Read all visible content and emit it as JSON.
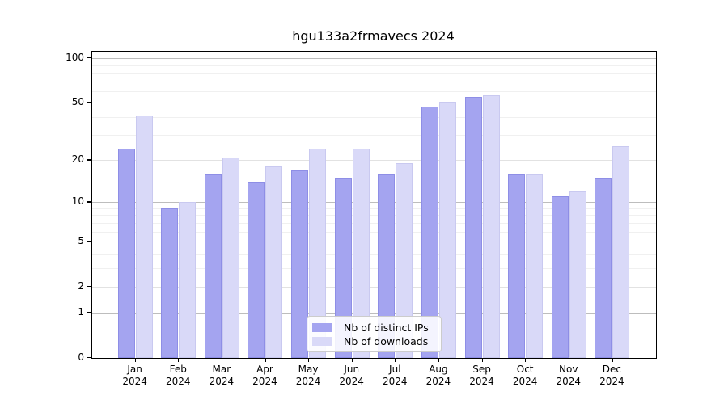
{
  "figure": {
    "title": "hgu133a2frmavecs 2024"
  },
  "chart_data": {
    "type": "bar",
    "title": "hgu133a2frmavecs 2024",
    "categories": [
      {
        "month": "Jan",
        "year": "2024"
      },
      {
        "month": "Feb",
        "year": "2024"
      },
      {
        "month": "Mar",
        "year": "2024"
      },
      {
        "month": "Apr",
        "year": "2024"
      },
      {
        "month": "May",
        "year": "2024"
      },
      {
        "month": "Jun",
        "year": "2024"
      },
      {
        "month": "Jul",
        "year": "2024"
      },
      {
        "month": "Aug",
        "year": "2024"
      },
      {
        "month": "Sep",
        "year": "2024"
      },
      {
        "month": "Oct",
        "year": "2024"
      },
      {
        "month": "Nov",
        "year": "2024"
      },
      {
        "month": "Dec",
        "year": "2024"
      }
    ],
    "series": [
      {
        "key": "distinct-ips",
        "name": "Nb of distinct IPs",
        "color": "#a4a4f0",
        "edge_color": "#8e8ee6",
        "values": [
          24,
          9,
          16,
          14,
          17,
          15,
          16,
          47,
          55,
          16,
          11,
          15
        ]
      },
      {
        "key": "downloads",
        "name": "Nb of downloads",
        "color": "#d9d9f8",
        "edge_color": "#c9c9f0",
        "values": [
          41,
          10,
          21,
          18,
          24,
          24,
          19,
          51,
          56,
          16,
          12,
          25
        ]
      }
    ],
    "y_axis": {
      "scale": "log10(value+1)",
      "ticks": [
        0,
        1,
        2,
        5,
        10,
        20,
        50,
        100
      ]
    },
    "grid": {
      "major_dark_values": [
        1,
        10,
        100
      ],
      "major_light_values": [
        2,
        5,
        20,
        50
      ],
      "minor_values": [
        3,
        4,
        6,
        7,
        8,
        9,
        30,
        40,
        60,
        70,
        80,
        90
      ],
      "colors": {
        "major_dark": "#bdbdbd",
        "major_light": "#e2e2e2",
        "minor": "#f0f0f0"
      }
    },
    "legend_position": "lower center"
  }
}
